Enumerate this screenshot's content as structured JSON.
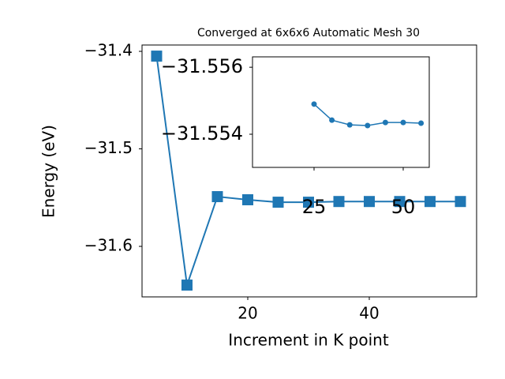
{
  "chart_data": [
    {
      "type": "line",
      "title": "Converged at 6x6x6 Automatic Mesh 30",
      "x_label": "Increment in K point",
      "y_label": "Energy (eV)",
      "x": [
        5,
        10,
        15,
        20,
        25,
        30,
        35,
        40,
        45,
        50,
        55
      ],
      "series": [
        {
          "color": "#1f77b4",
          "marker": "square",
          "values": [
            -31.4049,
            -31.6397,
            -31.549,
            -31.5522,
            -31.5547,
            -31.5547,
            -31.554,
            -31.554,
            -31.554,
            -31.554,
            -31.554
          ]
        }
      ],
      "xlim": [
        2.6,
        57.66
      ],
      "ylim": [
        -31.6518,
        -31.3935
      ],
      "xticks": [
        20,
        40
      ],
      "yticks": [
        {
          "value": -31.6,
          "label": "−31.6"
        },
        {
          "value": -31.5,
          "label": "−31.5"
        },
        {
          "value": -31.4,
          "label": "−31.4"
        }
      ]
    },
    {
      "type": "line",
      "x": [
        25,
        30,
        35,
        40,
        45,
        50,
        55
      ],
      "series": [
        {
          "color": "#1f77b4",
          "marker": "circle",
          "values": [
            -31.5549,
            -31.55442,
            -31.55428,
            -31.55426,
            -31.55435,
            -31.55435,
            -31.55433
          ]
        }
      ],
      "xlim": [
        7.74,
        57.3
      ],
      "ylim": [
        -31.55301,
        -31.55631
      ],
      "xticks": [
        25,
        50
      ],
      "yticks": [
        {
          "value": -31.556,
          "label": "−31.556"
        },
        {
          "value": -31.554,
          "label": "−31.554"
        }
      ]
    }
  ]
}
